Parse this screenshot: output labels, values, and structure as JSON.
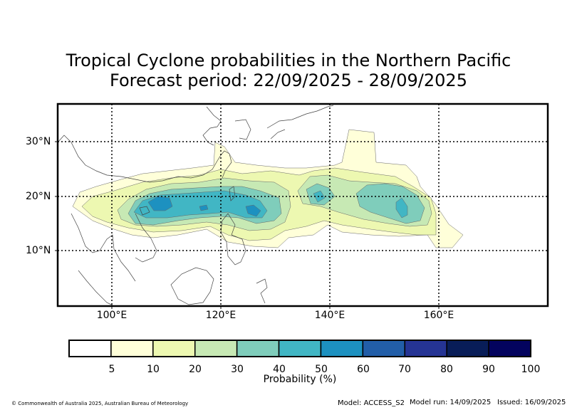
{
  "title": {
    "line1": "Tropical Cyclone probabilities in the Northern Pacific",
    "line2": "Forecast period: 22/09/2025 - 28/09/2025"
  },
  "map": {
    "lat_labels": [
      "30°N",
      "20°N",
      "10°N"
    ],
    "lon_labels": [
      "100°E",
      "120°E",
      "140°E",
      "160°E"
    ],
    "gridlines": "dotted"
  },
  "colorbar": {
    "ticks": [
      "5",
      "10",
      "20",
      "30",
      "40",
      "50",
      "60",
      "70",
      "80",
      "90",
      "100"
    ],
    "colors": [
      "#ffffff",
      "#ffffd9",
      "#edf8b1",
      "#c7e9b4",
      "#7fcdbb",
      "#41b6c4",
      "#1d91c0",
      "#225ea8",
      "#253494",
      "#081d58",
      "#03035e"
    ],
    "label": "Probability (%)"
  },
  "footer": {
    "copyright": "© Commonwealth of Australia 2025, Australian Bureau of Meteorology",
    "model": "Model: ACCESS_S2",
    "model_run": "Model run: 14/09/2025",
    "issued": "Issued: 16/09/2025"
  }
}
